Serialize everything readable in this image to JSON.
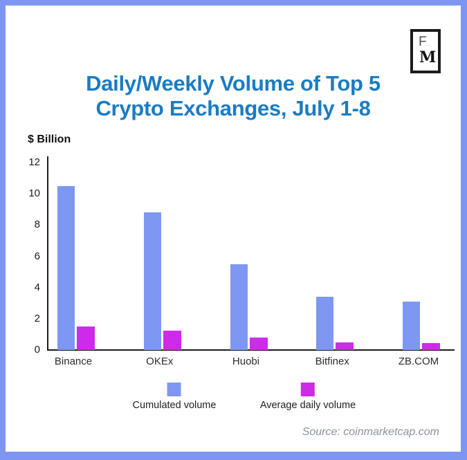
{
  "frame": {
    "border_color": "#7E96F2",
    "background": "#FFFFFF"
  },
  "logo": {
    "letter_top": "F",
    "letter_bottom": "M"
  },
  "title": {
    "lines": [
      "Daily/Weekly Volume of Top 5",
      "Crypto Exchanges, July 1-8"
    ],
    "color": "#1A7CC2"
  },
  "chart_data": {
    "type": "bar",
    "title": "Daily/Weekly Volume of Top 5 Crypto Exchanges, July 1-8",
    "ylabel": "$ Billion",
    "xlabel": "",
    "categories": [
      "Binance",
      "OKEx",
      "Huobi",
      "Bitfinex",
      "ZB.COM"
    ],
    "series": [
      {
        "name": "Cumulated volume",
        "color": "#7E97F3",
        "values": [
          10.5,
          8.8,
          5.5,
          3.4,
          3.1
        ]
      },
      {
        "name": "Average daily volume",
        "color": "#CD2BE9",
        "values": [
          1.5,
          1.26,
          0.79,
          0.49,
          0.44
        ]
      }
    ],
    "ylim": [
      0,
      12
    ],
    "yticks": [
      0,
      2,
      4,
      6,
      8,
      10,
      12
    ],
    "grid": false,
    "legend_position": "bottom"
  },
  "source": {
    "text": "Source: coinmarketcap.com",
    "color": "#8C929C"
  }
}
